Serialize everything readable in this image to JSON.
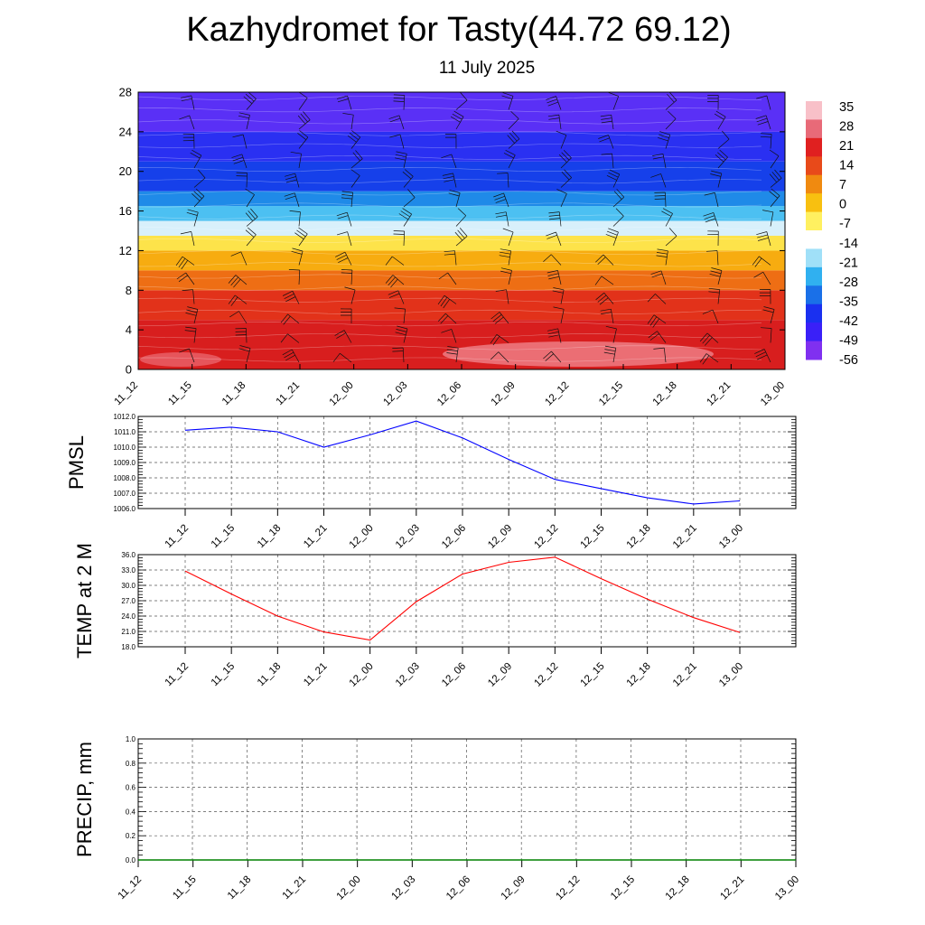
{
  "title": "Kazhydromet for Tasty(44.72 69.12)",
  "subtitle": "11 July 2025",
  "chart_data": [
    {
      "id": "upper_air",
      "type": "heatmap",
      "description_kind": "time-height cross section with filled temperature contours and wind barbs",
      "x_ticks": [
        "11_12",
        "11_15",
        "11_18",
        "11_21",
        "12_00",
        "12_03",
        "12_06",
        "12_09",
        "12_12",
        "12_15",
        "12_18",
        "12_21",
        "13_00"
      ],
      "y_ticks": [
        0,
        4,
        8,
        12,
        16,
        20,
        24,
        28
      ],
      "ylim": [
        0,
        28
      ],
      "colorbar": {
        "labels": [
          "35",
          "28",
          "21",
          "14",
          "7",
          "0",
          "-7",
          "-14",
          "-21",
          "-28",
          "-35",
          "-42",
          "-49",
          "-56"
        ],
        "colors": [
          "#f8c0c8",
          "#e86a78",
          "#e02020",
          "#e84a1a",
          "#f08a10",
          "#f8c010",
          "#fff060",
          "#ffffff",
          "#a0e0f8",
          "#30b0f0",
          "#1a70e8",
          "#1a30f0",
          "#3a20f8",
          "#8030f0"
        ]
      },
      "bands": [
        {
          "y_from": 0,
          "y_to": 5,
          "color": "#d81e1e"
        },
        {
          "y_from": 5,
          "y_to": 8,
          "color": "#e2321a"
        },
        {
          "y_from": 8,
          "y_to": 10,
          "color": "#ee6e14"
        },
        {
          "y_from": 10,
          "y_to": 12,
          "color": "#f7ac10"
        },
        {
          "y_from": 12,
          "y_to": 13.5,
          "color": "#fde34a"
        },
        {
          "y_from": 13.5,
          "y_to": 15,
          "color": "#d8f0fb"
        },
        {
          "y_from": 15,
          "y_to": 16.5,
          "color": "#4cc0f2"
        },
        {
          "y_from": 16.5,
          "y_to": 18,
          "color": "#1f8ae8"
        },
        {
          "y_from": 18,
          "y_to": 21,
          "color": "#1640ea"
        },
        {
          "y_from": 21,
          "y_to": 24,
          "color": "#2a30f2"
        },
        {
          "y_from": 24,
          "y_to": 28,
          "color": "#5a30f6"
        }
      ]
    },
    {
      "id": "pmsl",
      "type": "line",
      "ylabel": "PMSL",
      "x": [
        "11_12",
        "11_15",
        "11_18",
        "11_21",
        "12_00",
        "12_03",
        "12_06",
        "12_09",
        "12_12",
        "12_15",
        "12_18",
        "12_21",
        "13_00"
      ],
      "values": [
        1011.1,
        1011.3,
        1011.0,
        1010.0,
        1010.8,
        1011.7,
        1010.6,
        1009.2,
        1007.9,
        1007.3,
        1006.7,
        1006.3,
        1006.5
      ],
      "ylim": [
        1006.0,
        1012.0
      ],
      "y_ticks": [
        "1006.0",
        "1007.0",
        "1008.0",
        "1009.0",
        "1010.0",
        "1011.0",
        "1012.0"
      ],
      "color": "#0000ff",
      "grid": true
    },
    {
      "id": "temp2m",
      "type": "line",
      "ylabel": "TEMP at 2 M",
      "x": [
        "11_12",
        "11_15",
        "11_18",
        "11_21",
        "12_00",
        "12_03",
        "12_06",
        "12_09",
        "12_12",
        "12_15",
        "12_18",
        "12_21",
        "13_00"
      ],
      "values": [
        32.8,
        28.3,
        24.0,
        20.9,
        19.3,
        26.8,
        32.2,
        34.5,
        35.5,
        31.3,
        27.3,
        23.7,
        20.8
      ],
      "ylim": [
        18.0,
        36.0
      ],
      "y_ticks": [
        "18.0",
        "21.0",
        "24.0",
        "27.0",
        "30.0",
        "33.0",
        "36.0"
      ],
      "color": "#ff0000",
      "grid": true
    },
    {
      "id": "precip",
      "type": "line",
      "ylabel": "PRECIP, mm",
      "x": [
        "11_12",
        "11_15",
        "11_18",
        "11_21",
        "12_00",
        "12_03",
        "12_06",
        "12_09",
        "12_12",
        "12_15",
        "12_18",
        "12_21",
        "13_00"
      ],
      "values": [
        0,
        0,
        0,
        0,
        0,
        0,
        0,
        0,
        0,
        0,
        0,
        0,
        0
      ],
      "ylim": [
        0.0,
        1.0
      ],
      "y_ticks": [
        "0.0",
        "0.2",
        "0.4",
        "0.6",
        "0.8",
        "1.0"
      ],
      "color": "#008000",
      "grid": true
    }
  ]
}
